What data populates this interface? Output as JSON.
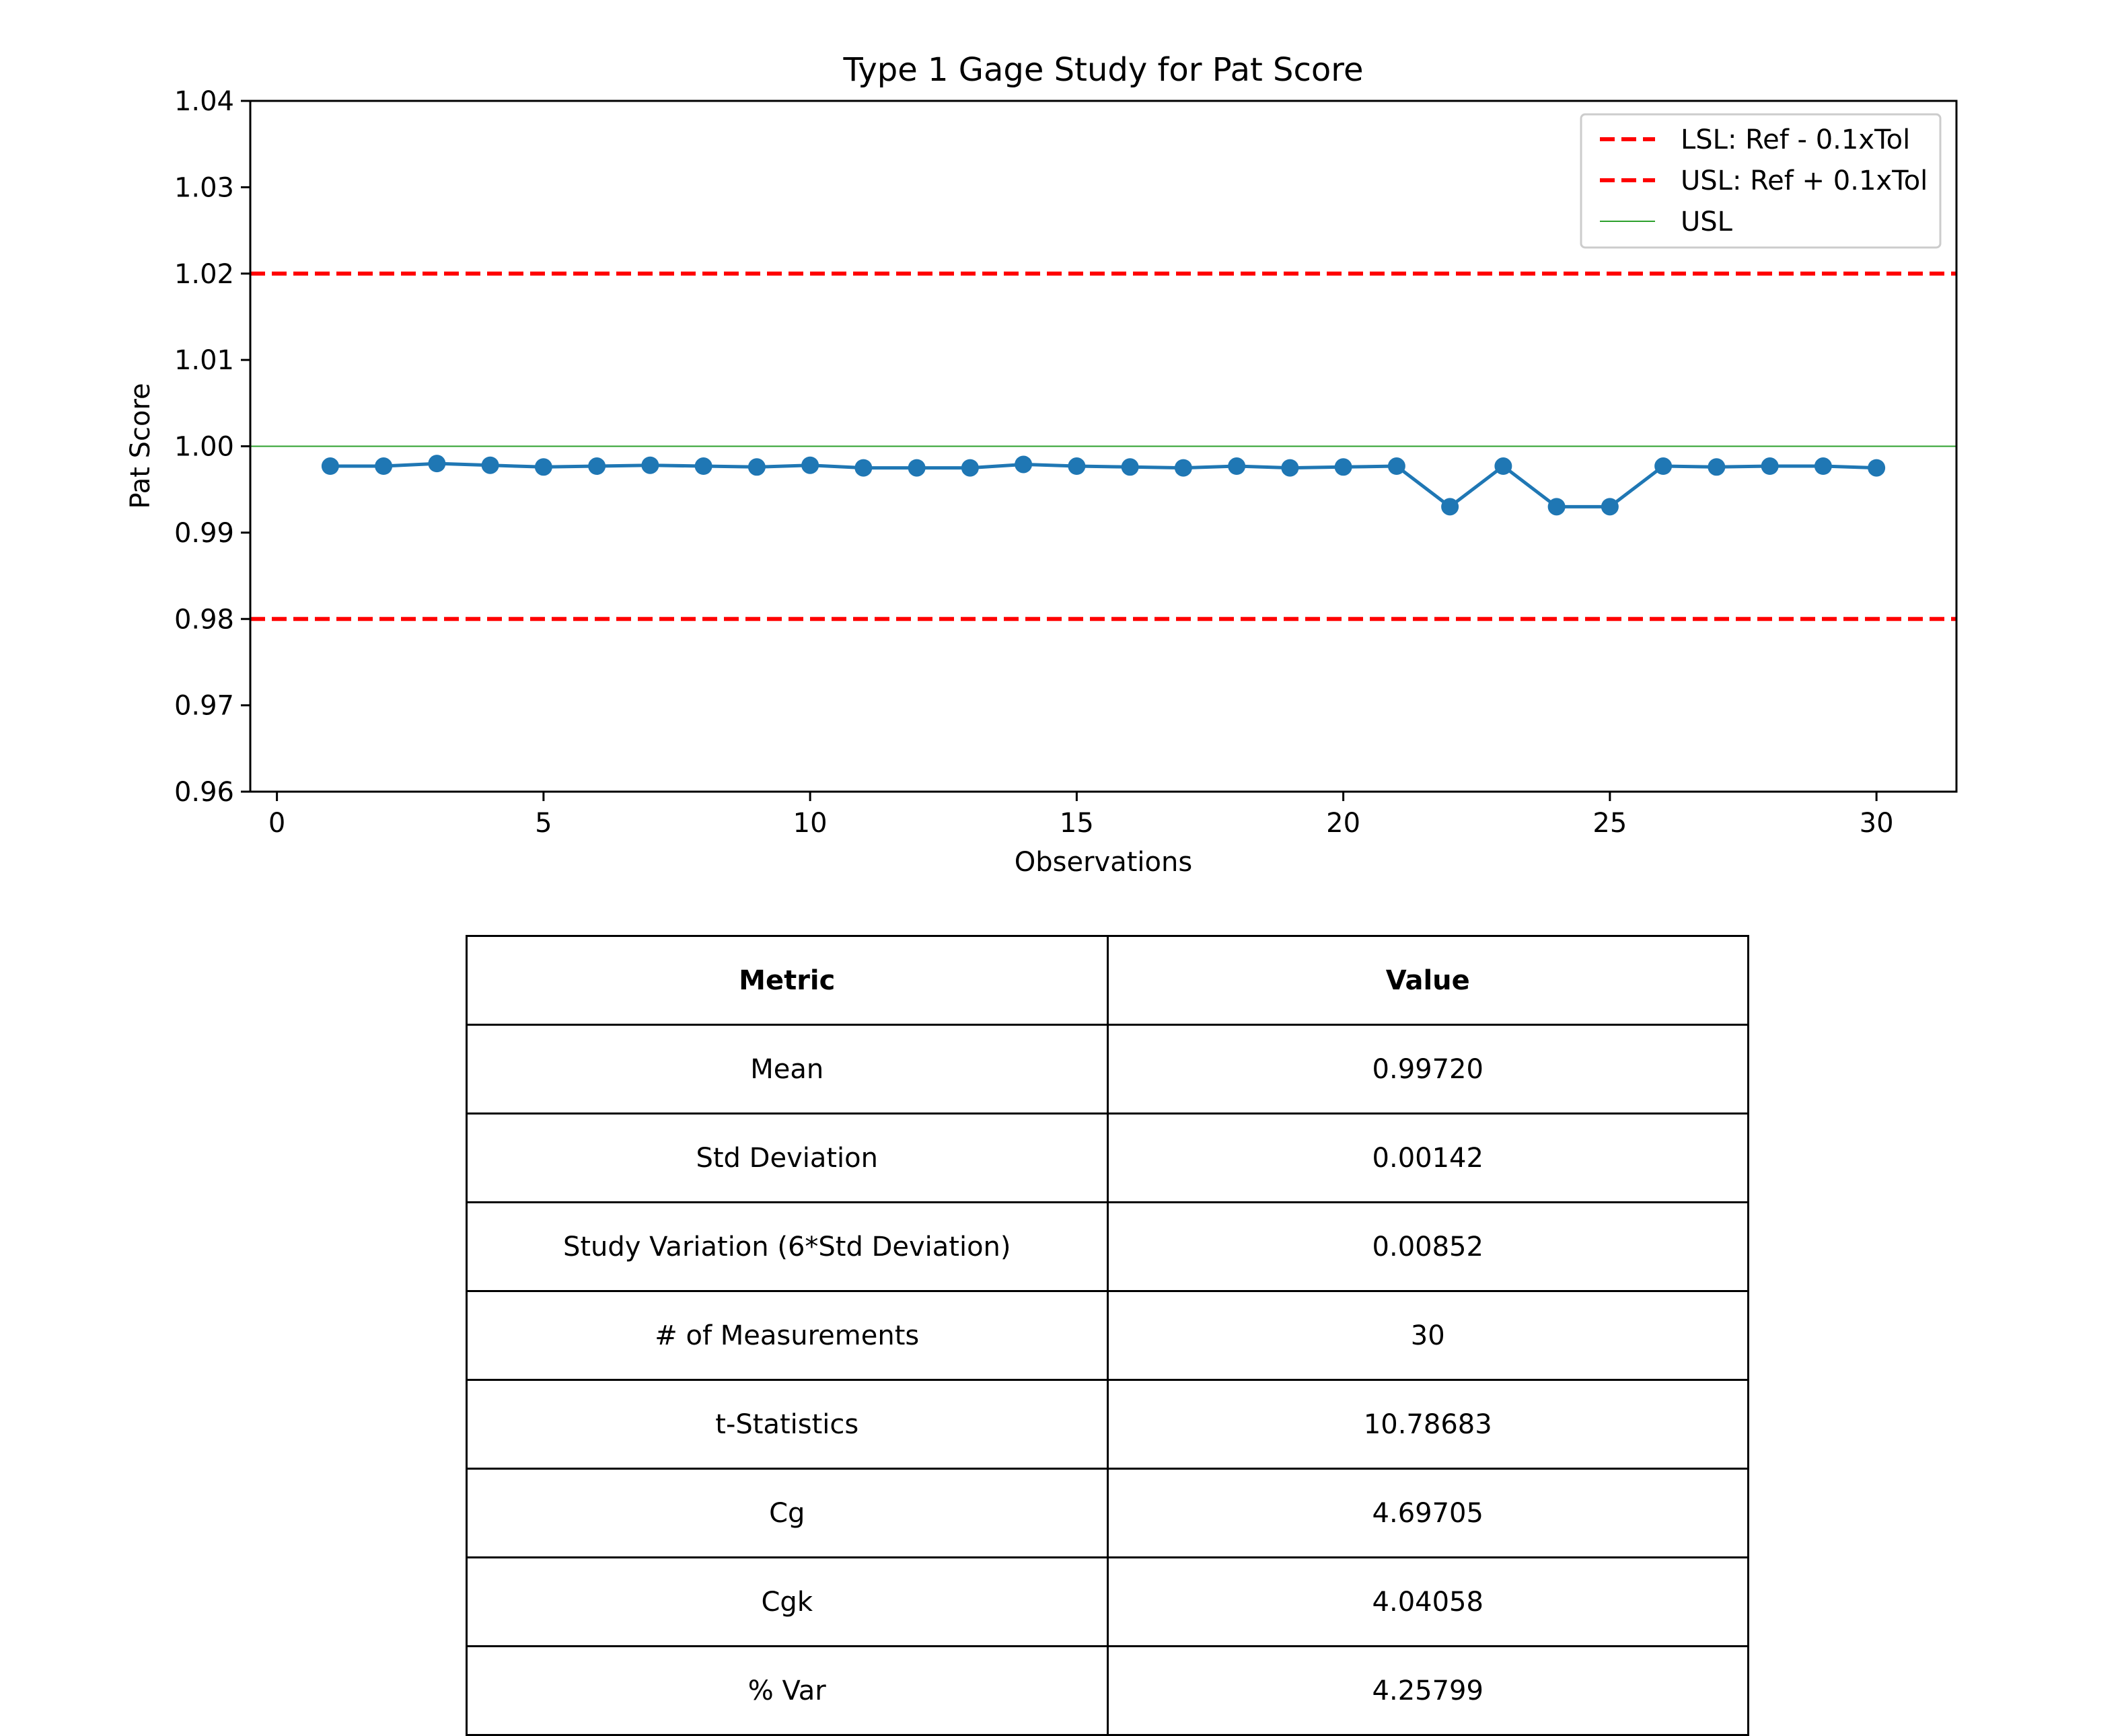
{
  "chart_data": {
    "type": "line",
    "title": "Type 1 Gage Study for Pat Score",
    "xlabel": "Observations",
    "ylabel": "Pat Score",
    "xlim": [
      -0.5,
      31.5
    ],
    "ylim": [
      0.96,
      1.04
    ],
    "x_ticks": [
      0,
      5,
      10,
      15,
      20,
      25,
      30
    ],
    "y_ticks": [
      0.96,
      0.97,
      0.98,
      0.99,
      1.0,
      1.01,
      1.02,
      1.03,
      1.04
    ],
    "grid": false,
    "legend_position": "top-right",
    "series": [
      {
        "x": [
          1,
          2,
          3,
          4,
          5,
          6,
          7,
          8,
          9,
          10,
          11,
          12,
          13,
          14,
          15,
          16,
          17,
          18,
          19,
          20,
          21,
          22,
          23,
          24,
          25,
          26,
          27,
          28,
          29,
          30
        ],
        "values": [
          0.9977,
          0.9977,
          0.998,
          0.9978,
          0.9976,
          0.9977,
          0.9978,
          0.9977,
          0.9976,
          0.9978,
          0.9975,
          0.9975,
          0.9975,
          0.9979,
          0.9977,
          0.9976,
          0.9975,
          0.9977,
          0.9975,
          0.9976,
          0.9977,
          0.993,
          0.9977,
          0.993,
          0.993,
          0.9977,
          0.9976,
          0.9977,
          0.9977,
          0.9975
        ],
        "color": "#1f77b4"
      }
    ],
    "reference_lines": [
      {
        "name": "LSL: Ref - 0.1xTol",
        "y": 0.98,
        "color": "#ff0000",
        "style": "dashed"
      },
      {
        "name": "USL: Ref + 0.1xTol",
        "y": 1.02,
        "color": "#ff0000",
        "style": "dashed"
      },
      {
        "name": "USL",
        "y": 1.0,
        "color": "#2ca02c",
        "style": "solid"
      }
    ]
  },
  "table": {
    "headers": [
      "Metric",
      "Value"
    ],
    "rows": [
      [
        "Mean",
        "0.99720"
      ],
      [
        "Std Deviation",
        "0.00142"
      ],
      [
        "Study Variation (6*Std Deviation)",
        "0.00852"
      ],
      [
        "# of Measurements",
        "30"
      ],
      [
        "t-Statistics",
        "10.78683"
      ],
      [
        "Cg",
        "4.69705"
      ],
      [
        "Cgk",
        "4.04058"
      ],
      [
        "% Var",
        "4.25799"
      ]
    ]
  }
}
